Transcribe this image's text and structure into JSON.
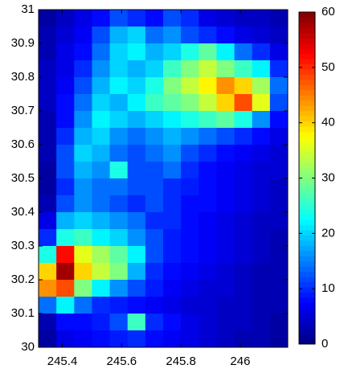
{
  "chart_data": {
    "type": "heatmap",
    "x": [
      245.35,
      245.41,
      245.47,
      245.53,
      245.59,
      245.65,
      245.71,
      245.77,
      245.83,
      245.89,
      245.95,
      246.01,
      246.07,
      246.13
    ],
    "y": [
      30.975,
      30.925,
      30.875,
      30.825,
      30.775,
      30.725,
      30.675,
      30.625,
      30.575,
      30.525,
      30.475,
      30.425,
      30.375,
      30.325,
      30.275,
      30.225,
      30.175,
      30.125,
      30.075,
      30.025
    ],
    "z": [
      [
        2,
        4,
        6,
        8,
        12,
        10,
        8,
        12,
        10,
        6,
        5,
        4,
        4,
        3
      ],
      [
        3,
        5,
        7,
        12,
        18,
        20,
        14,
        16,
        12,
        10,
        8,
        6,
        5,
        4
      ],
      [
        3,
        6,
        8,
        14,
        20,
        22,
        18,
        20,
        24,
        28,
        22,
        14,
        10,
        6
      ],
      [
        4,
        6,
        10,
        16,
        20,
        18,
        20,
        26,
        30,
        34,
        30,
        26,
        22,
        10
      ],
      [
        4,
        7,
        12,
        18,
        22,
        20,
        24,
        30,
        34,
        38,
        44,
        40,
        32,
        14
      ],
      [
        4,
        8,
        14,
        20,
        18,
        22,
        26,
        28,
        30,
        34,
        40,
        48,
        36,
        12
      ],
      [
        3,
        8,
        16,
        22,
        20,
        18,
        20,
        22,
        24,
        26,
        28,
        24,
        16,
        8
      ],
      [
        3,
        10,
        18,
        20,
        16,
        14,
        16,
        18,
        16,
        14,
        12,
        10,
        8,
        6
      ],
      [
        3,
        12,
        20,
        18,
        14,
        12,
        14,
        16,
        12,
        10,
        8,
        7,
        6,
        5
      ],
      [
        2,
        12,
        18,
        16,
        24,
        12,
        12,
        14,
        10,
        8,
        7,
        6,
        5,
        5
      ],
      [
        2,
        10,
        16,
        14,
        14,
        12,
        12,
        10,
        9,
        8,
        7,
        6,
        5,
        4
      ],
      [
        3,
        12,
        16,
        14,
        12,
        10,
        12,
        10,
        8,
        8,
        7,
        6,
        5,
        4
      ],
      [
        6,
        18,
        20,
        18,
        16,
        14,
        10,
        10,
        8,
        7,
        6,
        5,
        4,
        4
      ],
      [
        10,
        24,
        26,
        22,
        20,
        16,
        12,
        9,
        8,
        7,
        6,
        5,
        4,
        3
      ],
      [
        24,
        52,
        36,
        32,
        28,
        22,
        12,
        9,
        8,
        7,
        6,
        5,
        4,
        3
      ],
      [
        40,
        58,
        40,
        34,
        30,
        18,
        10,
        8,
        7,
        6,
        5,
        4,
        3,
        3
      ],
      [
        44,
        48,
        30,
        22,
        16,
        12,
        9,
        7,
        6,
        5,
        5,
        4,
        3,
        3
      ],
      [
        14,
        22,
        14,
        10,
        9,
        8,
        7,
        6,
        5,
        5,
        4,
        4,
        3,
        3
      ],
      [
        3,
        8,
        8,
        9,
        12,
        26,
        10,
        8,
        6,
        5,
        4,
        4,
        3,
        2
      ],
      [
        2,
        6,
        7,
        8,
        9,
        10,
        8,
        7,
        6,
        5,
        4,
        3,
        3,
        2
      ]
    ],
    "colormap": "jet",
    "xlim": [
      245.32,
      246.16
    ],
    "ylim": [
      30,
      31
    ],
    "xticks": [
      245.4,
      245.6,
      245.8,
      246
    ],
    "yticks": [
      30,
      30.1,
      30.2,
      30.3,
      30.4,
      30.5,
      30.6,
      30.7,
      30.8,
      30.9,
      31
    ],
    "clim": [
      0,
      60
    ],
    "cticks": [
      0,
      10,
      20,
      30,
      40,
      50,
      60
    ]
  }
}
